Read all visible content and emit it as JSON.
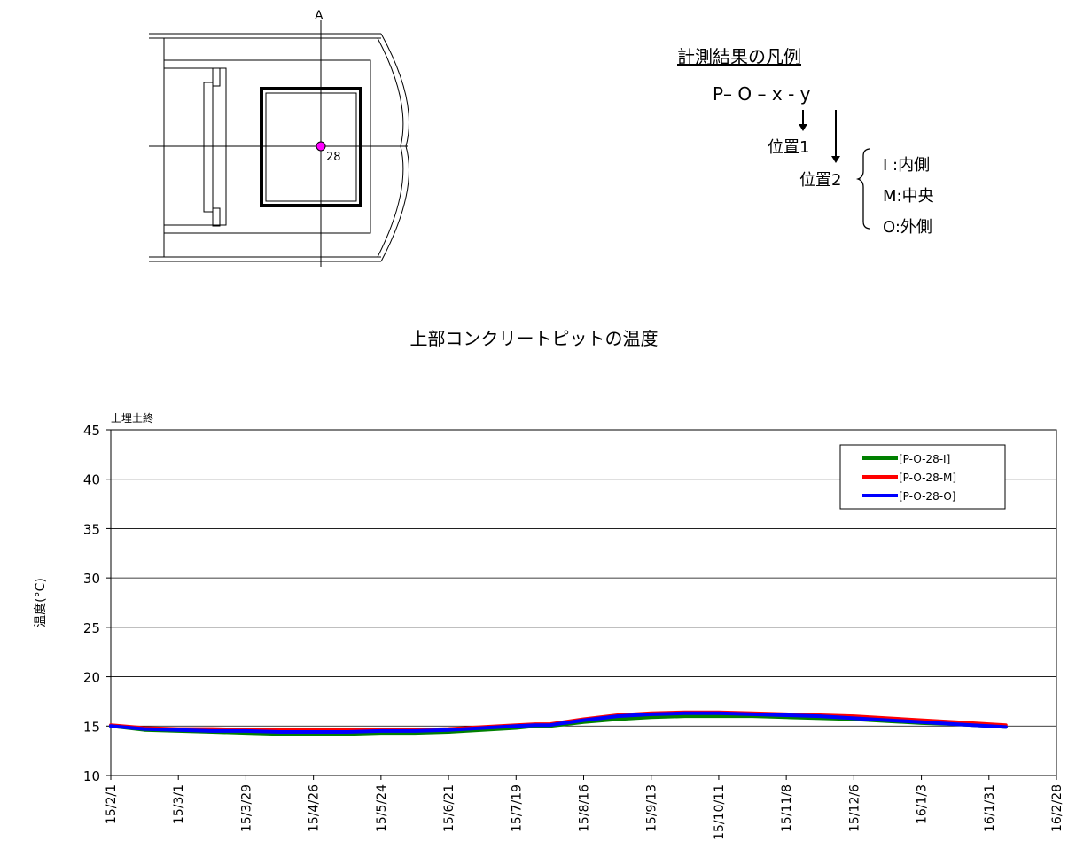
{
  "plan": {
    "section_label": "A",
    "point_label": "28",
    "point_color": "#ff00ff"
  },
  "legend_key": {
    "title": "計測結果の凡例",
    "code": "P– O – x - y",
    "position1": "位置1",
    "position2": "位置2",
    "options": [
      "I :内側",
      "M:中央",
      "O:外側"
    ]
  },
  "chart_data": {
    "type": "line",
    "title": "上部コンクリートピットの温度",
    "annotation": "上埋土終",
    "xlabel": "",
    "ylabel": "温度(°C)",
    "ylim": [
      10,
      45
    ],
    "yticks": [
      10,
      15,
      20,
      25,
      30,
      35,
      40,
      45
    ],
    "xlim": [
      "15/2/1",
      "16/2/28"
    ],
    "xticks": [
      "15/2/1",
      "15/3/1",
      "15/3/29",
      "15/4/26",
      "15/5/24",
      "15/6/21",
      "15/7/19",
      "15/8/16",
      "15/9/13",
      "15/10/11",
      "15/11/8",
      "15/12/6",
      "16/1/3",
      "16/1/31",
      "16/2/28"
    ],
    "grid": "horizontal",
    "legend_position": "top-right",
    "series": [
      {
        "name": "[P-O-28-I]",
        "color": "#008000",
        "x": [
          "15/2/1",
          "15/2/15",
          "15/3/1",
          "15/3/15",
          "15/3/29",
          "15/4/12",
          "15/4/26",
          "15/5/10",
          "15/5/24",
          "15/6/7",
          "15/6/21",
          "15/7/5",
          "15/7/19",
          "15/7/27",
          "15/8/2",
          "15/8/16",
          "15/8/30",
          "15/9/13",
          "15/9/27",
          "15/10/11",
          "15/10/25",
          "15/11/8",
          "15/11/22",
          "15/12/6",
          "15/12/20",
          "16/1/3",
          "16/1/17",
          "16/1/31",
          "16/2/7"
        ],
        "values": [
          15.0,
          14.6,
          14.5,
          14.4,
          14.3,
          14.2,
          14.2,
          14.2,
          14.3,
          14.3,
          14.4,
          14.6,
          14.8,
          15.0,
          15.0,
          15.4,
          15.7,
          15.9,
          16.0,
          16.0,
          16.0,
          15.9,
          15.8,
          15.7,
          15.5,
          15.3,
          15.2,
          15.0,
          14.9
        ]
      },
      {
        "name": "[P-O-28-M]",
        "color": "#ff0000",
        "x": [
          "15/2/1",
          "15/2/15",
          "15/3/1",
          "15/3/15",
          "15/3/29",
          "15/4/12",
          "15/4/26",
          "15/5/10",
          "15/5/24",
          "15/6/7",
          "15/6/21",
          "15/7/5",
          "15/7/19",
          "15/7/27",
          "15/8/2",
          "15/8/16",
          "15/8/30",
          "15/9/13",
          "15/9/27",
          "15/10/11",
          "15/10/25",
          "15/11/8",
          "15/11/22",
          "15/12/6",
          "15/12/20",
          "16/1/3",
          "16/1/17",
          "16/1/31",
          "16/2/7"
        ],
        "values": [
          15.1,
          14.8,
          14.7,
          14.7,
          14.6,
          14.6,
          14.6,
          14.6,
          14.6,
          14.6,
          14.7,
          14.9,
          15.1,
          15.2,
          15.2,
          15.7,
          16.1,
          16.3,
          16.4,
          16.4,
          16.3,
          16.2,
          16.1,
          16.0,
          15.8,
          15.6,
          15.4,
          15.2,
          15.1
        ]
      },
      {
        "name": "[P-O-28-O]",
        "color": "#0000ff",
        "x": [
          "15/2/1",
          "15/2/15",
          "15/3/1",
          "15/3/15",
          "15/3/29",
          "15/4/12",
          "15/4/26",
          "15/5/10",
          "15/5/24",
          "15/6/7",
          "15/6/21",
          "15/7/5",
          "15/7/19",
          "15/7/27",
          "15/8/2",
          "15/8/16",
          "15/8/30",
          "15/9/13",
          "15/9/27",
          "15/10/11",
          "15/10/25",
          "15/11/8",
          "15/11/22",
          "15/12/6",
          "15/12/20",
          "16/1/3",
          "16/1/17",
          "16/1/31",
          "16/2/7"
        ],
        "values": [
          15.0,
          14.7,
          14.6,
          14.5,
          14.5,
          14.4,
          14.4,
          14.4,
          14.5,
          14.5,
          14.6,
          14.8,
          15.0,
          15.1,
          15.1,
          15.6,
          16.0,
          16.2,
          16.3,
          16.3,
          16.2,
          16.1,
          16.0,
          15.8,
          15.6,
          15.4,
          15.2,
          15.0,
          14.9
        ]
      }
    ]
  }
}
